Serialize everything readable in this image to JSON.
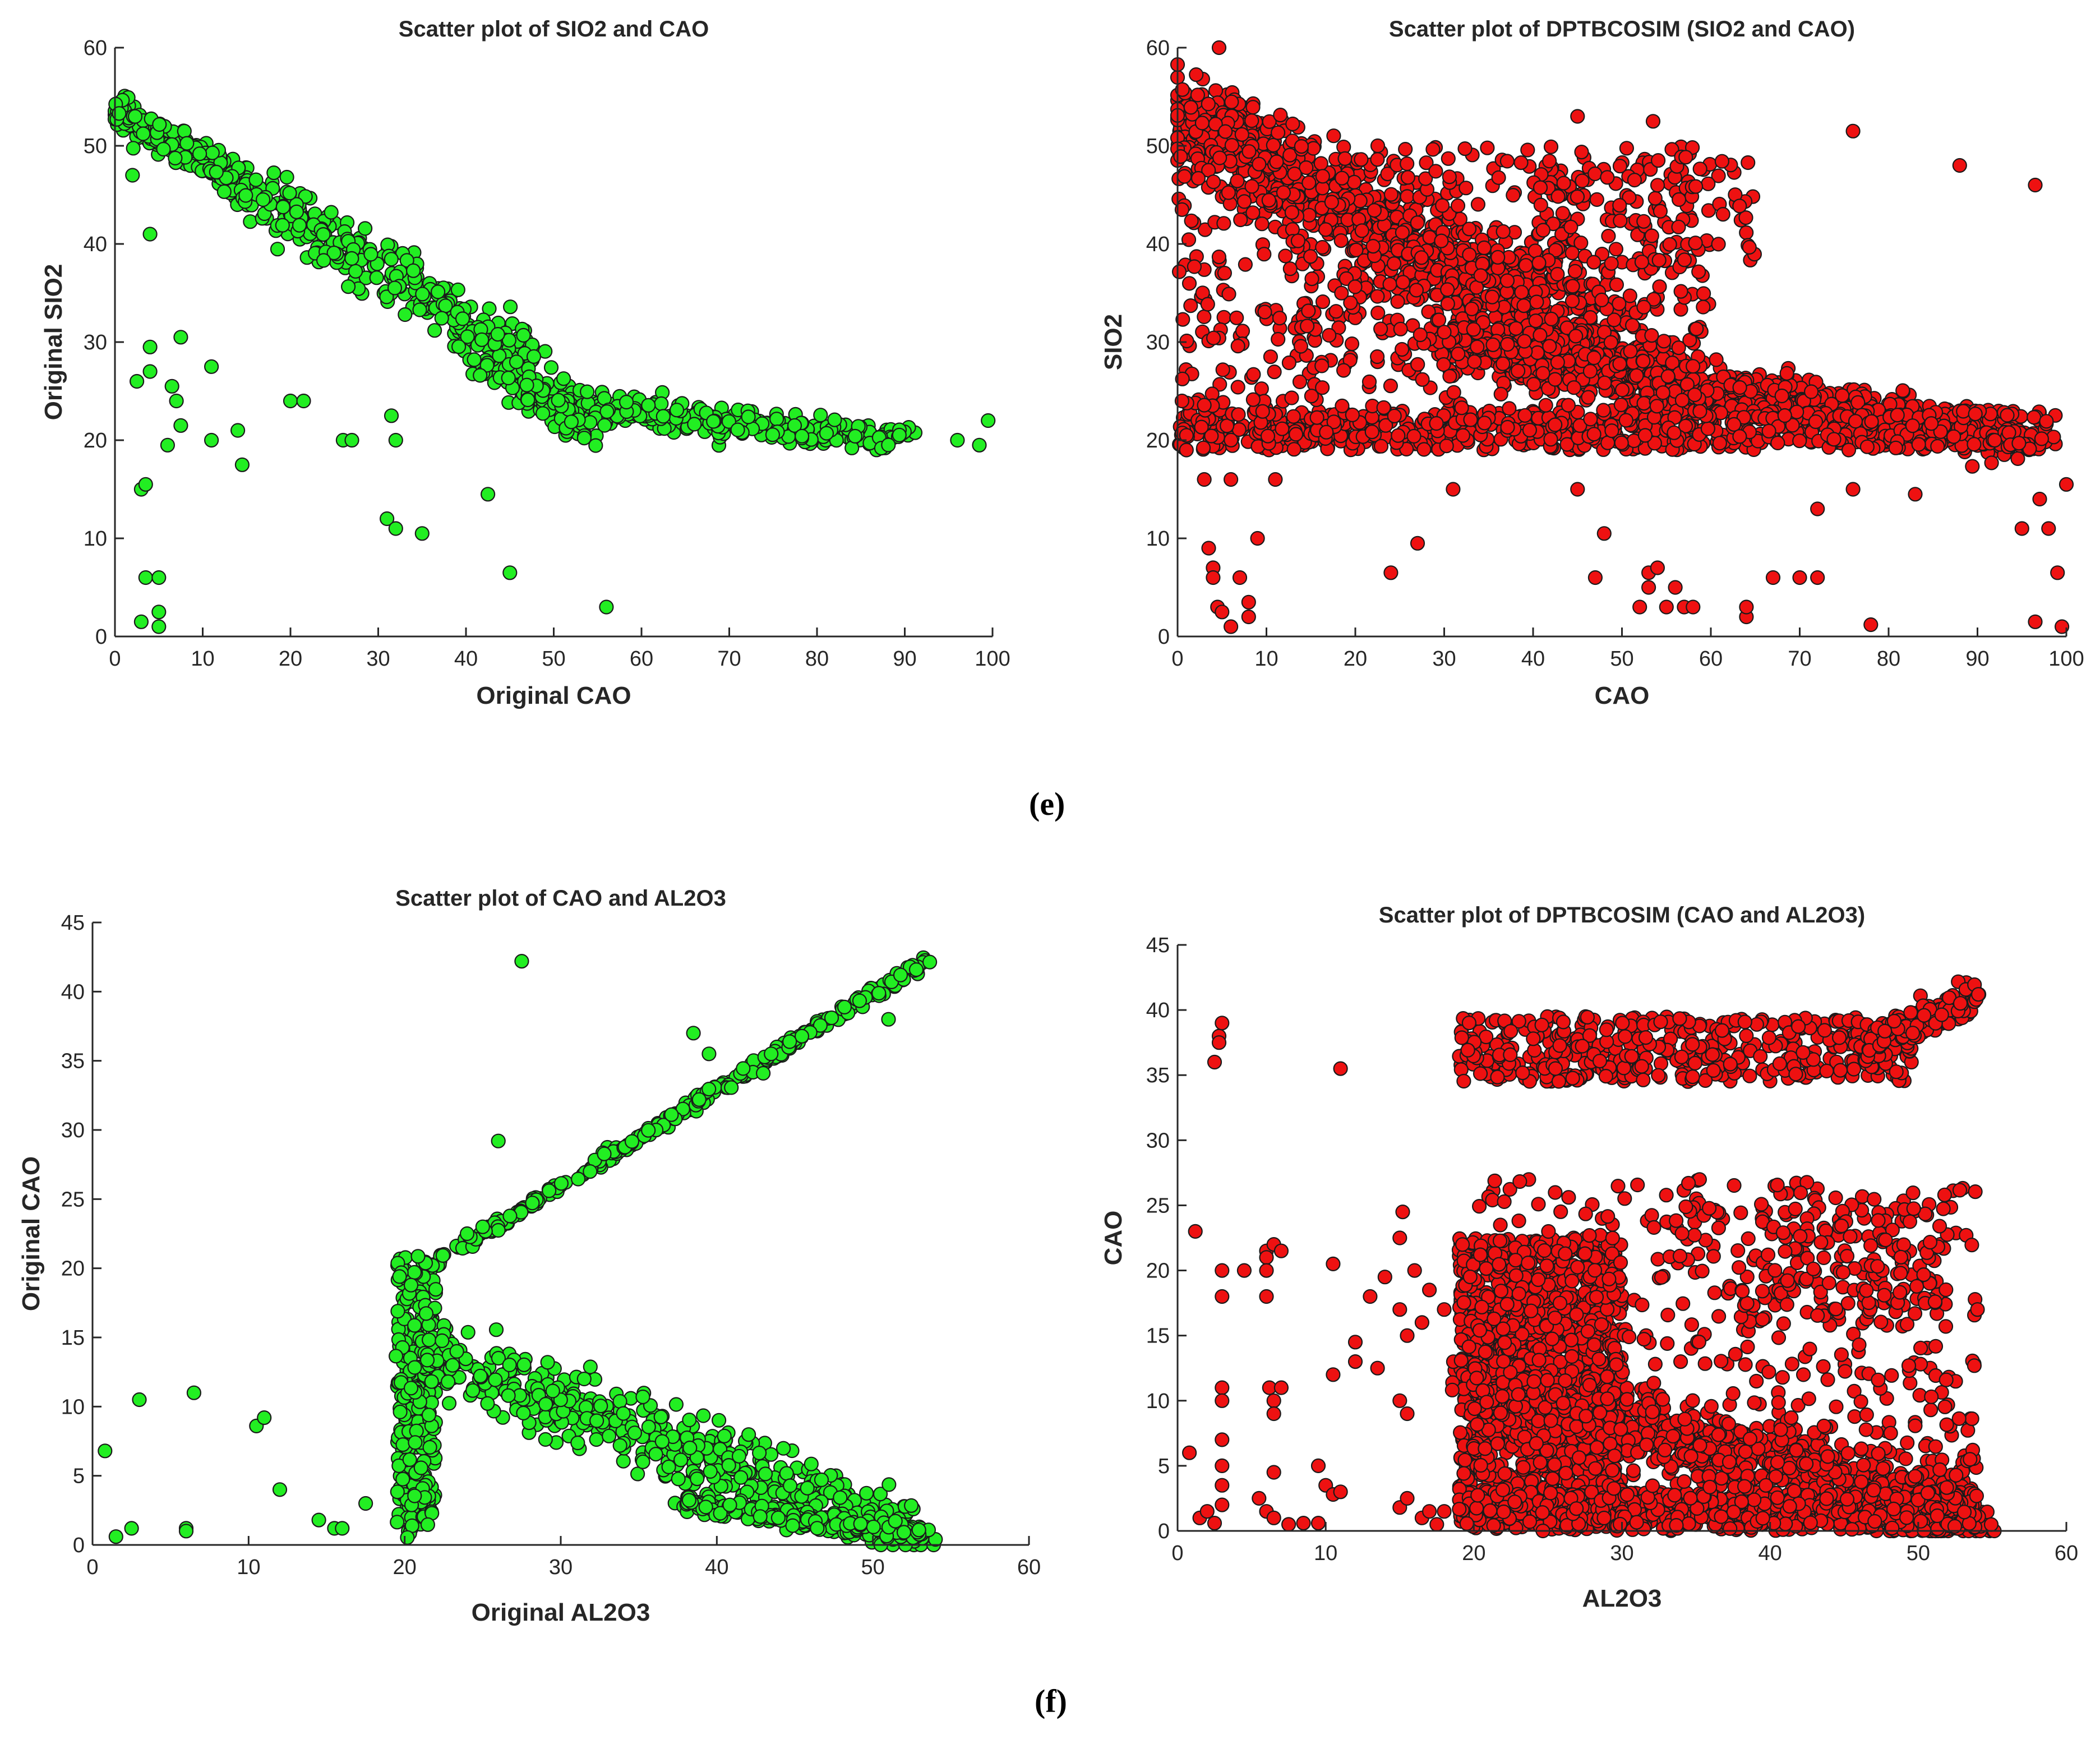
{
  "captions": {
    "e": "(e)",
    "f": "(f)"
  },
  "colors": {
    "green": "#22ee22",
    "red": "#ee1111",
    "edge": "#1a1a1a"
  },
  "chart_data": [
    {
      "type": "scatter",
      "title": "Scatter plot of SIO2 and CAO",
      "xlabel": "Original CAO",
      "ylabel": "Original SIO2",
      "xlim": [
        0,
        100
      ],
      "ylim": [
        0,
        60
      ],
      "xticks": [
        0,
        10,
        20,
        30,
        40,
        50,
        60,
        70,
        80,
        90,
        100
      ],
      "yticks": [
        0,
        10,
        20,
        30,
        40,
        50,
        60
      ],
      "marker_color": "#22ee22",
      "clusters": [
        {
          "kind": "line",
          "x0": 0.5,
          "y0": 53.5,
          "x1": 15,
          "y1": 46,
          "n": 320,
          "jx": 1.2,
          "jy": 1.6
        },
        {
          "kind": "line",
          "x0": 15,
          "y0": 46,
          "x1": 48,
          "y1": 28,
          "n": 260,
          "jx": 2.5,
          "jy": 3.2
        },
        {
          "kind": "line",
          "x0": 48,
          "y0": 24,
          "x1": 90,
          "y1": 20,
          "n": 320,
          "jx": 2.5,
          "jy": 1.6
        },
        {
          "kind": "line",
          "x0": 40,
          "y0": 30,
          "x1": 55,
          "y1": 21,
          "n": 120,
          "jx": 2.5,
          "jy": 2.5
        }
      ],
      "points": [
        [
          2,
          47
        ],
        [
          2.5,
          26
        ],
        [
          3,
          15
        ],
        [
          3.5,
          15.5
        ],
        [
          3.5,
          6
        ],
        [
          4,
          27
        ],
        [
          4,
          29.5
        ],
        [
          4,
          41
        ],
        [
          5,
          6
        ],
        [
          5,
          2.5
        ],
        [
          5,
          1
        ],
        [
          3,
          1.5
        ],
        [
          6,
          19.5
        ],
        [
          6.5,
          25.5
        ],
        [
          7,
          24
        ],
        [
          7.5,
          21.5
        ],
        [
          7.5,
          30.5
        ],
        [
          11,
          20
        ],
        [
          11,
          27.5
        ],
        [
          14,
          21
        ],
        [
          14.5,
          17.5
        ],
        [
          20,
          24
        ],
        [
          21.5,
          24
        ],
        [
          26,
          20
        ],
        [
          27,
          20
        ],
        [
          31,
          12
        ],
        [
          32,
          11
        ],
        [
          32,
          20
        ],
        [
          31.5,
          22.5
        ],
        [
          35,
          10.5
        ],
        [
          42.5,
          14.5
        ],
        [
          45,
          6.5
        ],
        [
          56,
          3
        ],
        [
          96,
          20
        ],
        [
          98.5,
          19.5
        ],
        [
          99.5,
          22
        ]
      ]
    },
    {
      "type": "scatter",
      "title": "Scatter plot of DPTBCOSIM (SIO2 and CAO)",
      "xlabel": "CAO",
      "ylabel": "SIO2",
      "xlim": [
        0,
        100
      ],
      "ylim": [
        0,
        60
      ],
      "xticks": [
        0,
        10,
        20,
        30,
        40,
        50,
        60,
        70,
        80,
        90,
        100
      ],
      "yticks": [
        0,
        10,
        20,
        30,
        40,
        50,
        60
      ],
      "marker_color": "#ee1111",
      "clusters": [
        {
          "kind": "box",
          "x0": 0,
          "x1": 8,
          "y0": 49,
          "y1": 54,
          "n": 300
        },
        {
          "kind": "line",
          "x0": 0.5,
          "y0": 53,
          "x1": 55,
          "y1": 26,
          "n": 950,
          "jx": 4,
          "jy": 5
        },
        {
          "kind": "line",
          "x0": 30,
          "y0": 30,
          "x1": 95,
          "y1": 20,
          "n": 900,
          "jx": 3,
          "jy": 2.4
        },
        {
          "kind": "band",
          "x0": 0,
          "x1": 99,
          "y0": 19,
          "y1": 23,
          "n": 650
        },
        {
          "kind": "box",
          "x0": 0,
          "x1": 60,
          "y0": 20,
          "y1": 50,
          "n": 650
        },
        {
          "kind": "box",
          "x0": 40,
          "x1": 65,
          "y0": 38,
          "y1": 49,
          "n": 90
        }
      ],
      "points": [
        [
          0.5,
          43.5
        ],
        [
          0.5,
          24
        ],
        [
          1,
          20.5
        ],
        [
          1,
          19
        ],
        [
          3,
          16
        ],
        [
          3.5,
          9
        ],
        [
          4,
          7
        ],
        [
          4,
          6
        ],
        [
          4.5,
          3
        ],
        [
          5,
          2.5
        ],
        [
          6,
          1
        ],
        [
          6,
          16
        ],
        [
          7,
          6
        ],
        [
          8,
          2
        ],
        [
          8,
          3.5
        ],
        [
          9,
          10
        ],
        [
          11,
          16
        ],
        [
          24,
          6.5
        ],
        [
          27,
          9.5
        ],
        [
          31,
          15
        ],
        [
          45,
          15
        ],
        [
          47,
          6
        ],
        [
          48,
          10.5
        ],
        [
          53,
          6.5
        ],
        [
          52,
          3
        ],
        [
          53,
          5
        ],
        [
          54,
          7
        ],
        [
          55,
          3
        ],
        [
          56,
          5
        ],
        [
          57,
          3
        ],
        [
          58,
          3
        ],
        [
          53.5,
          52.5
        ],
        [
          45,
          53
        ],
        [
          64,
          2
        ],
        [
          64,
          3
        ],
        [
          67,
          6
        ],
        [
          70,
          6
        ],
        [
          72,
          13
        ],
        [
          76,
          15
        ],
        [
          78,
          1.2
        ],
        [
          83,
          14.5
        ],
        [
          72,
          6
        ],
        [
          76,
          51.5
        ],
        [
          88,
          48
        ],
        [
          96.5,
          46
        ],
        [
          96.5,
          1.5
        ],
        [
          99.5,
          1
        ],
        [
          99,
          6.5
        ],
        [
          98,
          11
        ],
        [
          100,
          15.5
        ],
        [
          97,
          14
        ],
        [
          95,
          11
        ]
      ]
    },
    {
      "type": "scatter",
      "title": "Scatter plot of CAO and AL2O3",
      "xlabel": "Original AL2O3",
      "ylabel": "Original CAO",
      "xlim": [
        0,
        60
      ],
      "ylim": [
        0,
        45
      ],
      "xticks": [
        0,
        10,
        20,
        30,
        40,
        50,
        60
      ],
      "yticks": [
        0,
        5,
        10,
        15,
        20,
        25,
        30,
        35,
        40,
        45
      ],
      "marker_color": "#22ee22",
      "clusters": [
        {
          "kind": "line",
          "x0": 20,
          "y0": 19,
          "x1": 53.5,
          "y1": 42.3,
          "n": 330,
          "jx": 0.3,
          "jy": 0.4
        },
        {
          "kind": "box",
          "x0": 19.5,
          "x1": 22,
          "y0": 0.5,
          "y1": 21,
          "n": 280
        },
        {
          "kind": "line",
          "x0": 20.5,
          "y0": 14,
          "x1": 53,
          "y1": 0.8,
          "n": 500,
          "jx": 1.6,
          "jy": 2.6
        },
        {
          "kind": "line",
          "x0": 38,
          "y0": 3,
          "x1": 53.5,
          "y1": 0.7,
          "n": 260,
          "jx": 0.8,
          "jy": 0.7
        }
      ],
      "points": [
        [
          0.8,
          6.8
        ],
        [
          1.5,
          0.6
        ],
        [
          2.5,
          1.2
        ],
        [
          3,
          10.5
        ],
        [
          6,
          1.2
        ],
        [
          6,
          1
        ],
        [
          6.5,
          11
        ],
        [
          10.5,
          8.6
        ],
        [
          11,
          9.2
        ],
        [
          12,
          4
        ],
        [
          14.5,
          1.8
        ],
        [
          15.5,
          1.2
        ],
        [
          16,
          1.2
        ],
        [
          17.5,
          3
        ],
        [
          26,
          29.2
        ],
        [
          27.5,
          42.2
        ],
        [
          38.5,
          37
        ],
        [
          39.5,
          35.5
        ],
        [
          51,
          38
        ],
        [
          31.5,
          12
        ],
        [
          24,
          22.5
        ],
        [
          25,
          23
        ]
      ]
    },
    {
      "type": "scatter",
      "title": "Scatter plot of DPTBCOSIM (CAO and AL2O3)",
      "xlabel": "AL2O3",
      "ylabel": "CAO",
      "xlim": [
        0,
        60
      ],
      "ylim": [
        0,
        45
      ],
      "xticks": [
        0,
        10,
        20,
        30,
        40,
        50,
        60
      ],
      "yticks": [
        0,
        5,
        10,
        15,
        20,
        25,
        30,
        35,
        40,
        45
      ],
      "marker_color": "#ee1111",
      "clusters": [
        {
          "kind": "box",
          "x0": 19,
          "x1": 30,
          "y0": 0.3,
          "y1": 22.5,
          "n": 1300
        },
        {
          "kind": "line",
          "x0": 19.5,
          "y0": 12,
          "x1": 54,
          "y1": 0.8,
          "n": 900,
          "jx": 2,
          "jy": 2.8
        },
        {
          "kind": "box",
          "x0": 19,
          "x1": 54,
          "y0": 0,
          "y1": 3,
          "n": 600
        },
        {
          "kind": "band",
          "x0": 19,
          "x1": 50,
          "y0": 34.5,
          "y1": 39.5,
          "n": 450
        },
        {
          "kind": "line",
          "x0": 46,
          "y0": 37,
          "x1": 54,
          "y1": 41,
          "n": 200,
          "jx": 0.5,
          "jy": 1.4
        },
        {
          "kind": "box",
          "x0": 20,
          "x1": 54,
          "y0": 3,
          "y1": 27,
          "n": 500
        },
        {
          "kind": "box",
          "x0": 38,
          "x1": 52,
          "y0": 16,
          "y1": 24,
          "n": 120
        }
      ],
      "points": [
        [
          0.8,
          6
        ],
        [
          1.2,
          23
        ],
        [
          1.5,
          1
        ],
        [
          2,
          1.5
        ],
        [
          2.5,
          0.6
        ],
        [
          2.5,
          36
        ],
        [
          2.8,
          38
        ],
        [
          2.8,
          37.5
        ],
        [
          3,
          39
        ],
        [
          3,
          20
        ],
        [
          3,
          18
        ],
        [
          3,
          11
        ],
        [
          3,
          10
        ],
        [
          3,
          7
        ],
        [
          3,
          5
        ],
        [
          3,
          3.5
        ],
        [
          3,
          2
        ],
        [
          4.5,
          20
        ],
        [
          6,
          21.5
        ],
        [
          6,
          21
        ],
        [
          6.5,
          22
        ],
        [
          7,
          21.5
        ],
        [
          6,
          18
        ],
        [
          6,
          20
        ],
        [
          6.2,
          11
        ],
        [
          6.5,
          10
        ],
        [
          6.5,
          9
        ],
        [
          6.5,
          4.5
        ],
        [
          5.5,
          2.5
        ],
        [
          6,
          1.5
        ],
        [
          6.5,
          1
        ],
        [
          7,
          11
        ],
        [
          7.5,
          0.5
        ],
        [
          8.5,
          0.6
        ],
        [
          9.5,
          0.6
        ],
        [
          9.5,
          5
        ],
        [
          10,
          3.5
        ],
        [
          10.5,
          2.8
        ],
        [
          10.5,
          20.5
        ],
        [
          10.5,
          12
        ],
        [
          11,
          35.5
        ],
        [
          11,
          3
        ],
        [
          12,
          14.5
        ],
        [
          12,
          13
        ],
        [
          13,
          18
        ],
        [
          13.5,
          12.5
        ],
        [
          14,
          19.5
        ],
        [
          15,
          22.5
        ],
        [
          15.2,
          24.5
        ],
        [
          15,
          17
        ],
        [
          15,
          10
        ],
        [
          15.5,
          15
        ],
        [
          15.5,
          9
        ],
        [
          15,
          1.8
        ],
        [
          15.5,
          2.5
        ],
        [
          16,
          20
        ],
        [
          16.5,
          16
        ],
        [
          16.5,
          1
        ],
        [
          17,
          18.5
        ],
        [
          17,
          1.5
        ],
        [
          17.5,
          0.5
        ],
        [
          18,
          1.5
        ],
        [
          18,
          17
        ],
        [
          54,
          17
        ],
        [
          53.5,
          5.5
        ]
      ]
    }
  ]
}
